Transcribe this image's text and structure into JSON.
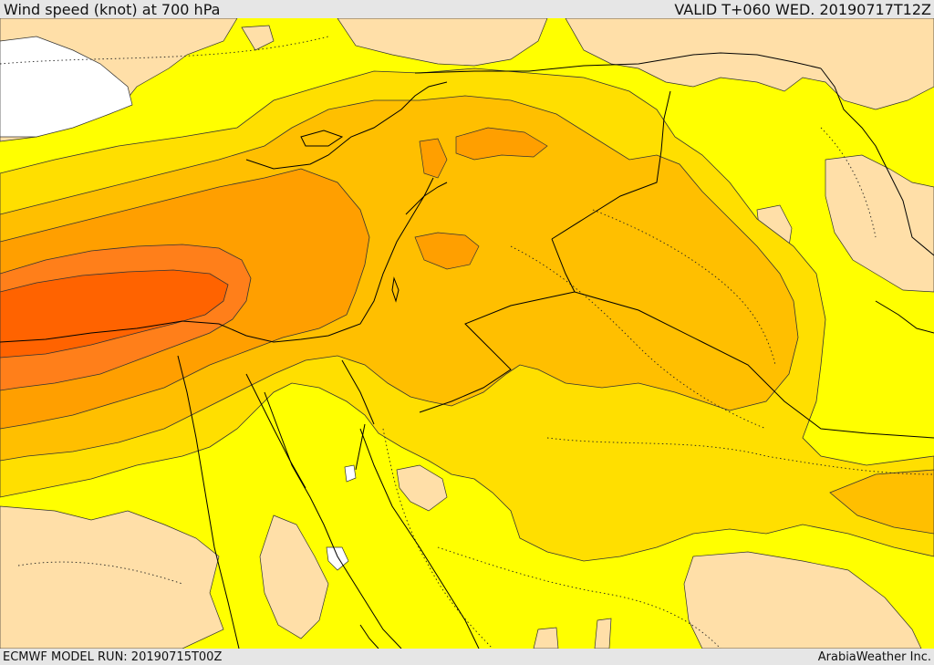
{
  "header": {
    "title": "Wind speed (knot) at 700 hPa",
    "valid_time": "VALID T+060 WED. 20190717T12Z"
  },
  "footer": {
    "model_run": "ECMWF MODEL RUN: 20190715T00Z",
    "credit": "ArabiaWeather Inc."
  },
  "map": {
    "field": "wind speed",
    "level": "700 hPa",
    "colors": {
      "calm": "#ffdfa8",
      "light": "#ffff00",
      "moderate": "#ffdf00",
      "fresh": "#ffbf00",
      "strong": "#ff9f00",
      "very_strong": "#ff7f1a",
      "jet_core": "#ff6300",
      "no_data_land": "#ffffff",
      "contour": "#333333",
      "border": "#000000"
    }
  }
}
